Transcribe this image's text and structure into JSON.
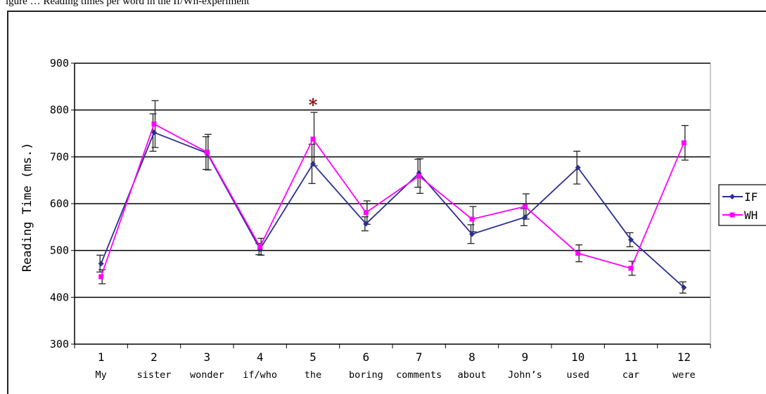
{
  "caption": "igure … Reading times per word in the If/Wh-experiment",
  "chart_data": {
    "type": "line",
    "ylabel": "Reading Time (ms.)",
    "xlabel": "",
    "ylim": [
      300,
      900
    ],
    "yticks": [
      300,
      400,
      500,
      600,
      700,
      800,
      900
    ],
    "grid": true,
    "legend_position": "right",
    "categories": [
      "1",
      "2",
      "3",
      "4",
      "5",
      "6",
      "7",
      "8",
      "9",
      "10",
      "11",
      "12"
    ],
    "words": [
      "My",
      "sister",
      "wonder",
      "if/who",
      "the",
      "boring",
      "comments",
      "about",
      "John’s",
      "used",
      "car",
      "were"
    ],
    "series": [
      {
        "name": "IF",
        "color": "#2b2f8f",
        "marker": "diamond",
        "values": [
          472,
          752,
          708,
          503,
          685,
          557,
          665,
          535,
          571,
          677,
          523,
          421
        ],
        "errors": [
          18,
          40,
          35,
          12,
          42,
          15,
          30,
          20,
          18,
          35,
          15,
          12
        ]
      },
      {
        "name": "WH",
        "color": "#ff00ff",
        "marker": "square",
        "values": [
          444,
          770,
          710,
          508,
          738,
          581,
          659,
          567,
          594,
          494,
          462,
          730
        ],
        "errors": [
          15,
          50,
          38,
          18,
          57,
          25,
          37,
          27,
          27,
          18,
          15,
          37
        ]
      }
    ],
    "annotations": [
      {
        "text": "*",
        "category": "5",
        "color": "#8b0000"
      }
    ]
  }
}
